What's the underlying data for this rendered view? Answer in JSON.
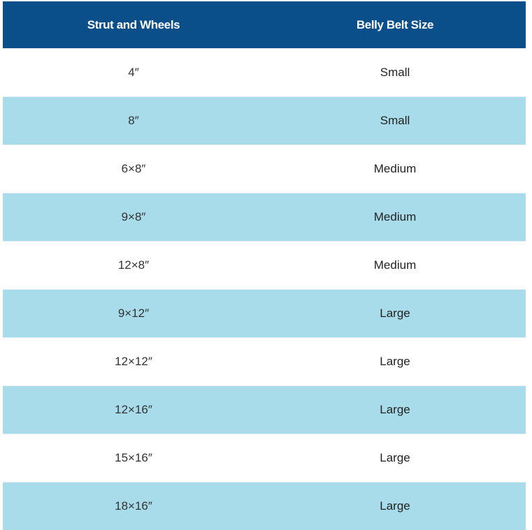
{
  "table": {
    "header": [
      "Strut and Wheels",
      "Belly Belt Size"
    ],
    "rows": [
      [
        "4″",
        "Small"
      ],
      [
        "8″",
        "Small"
      ],
      [
        "6×8″",
        "Medium"
      ],
      [
        "9×8″",
        "Medium"
      ],
      [
        "12×8″",
        "Medium"
      ],
      [
        "9×12″",
        "Large"
      ],
      [
        "12×12″",
        "Large"
      ],
      [
        "12×16″",
        "Large"
      ],
      [
        "15×16″",
        "Large"
      ],
      [
        "18×16″",
        "Large"
      ]
    ]
  }
}
